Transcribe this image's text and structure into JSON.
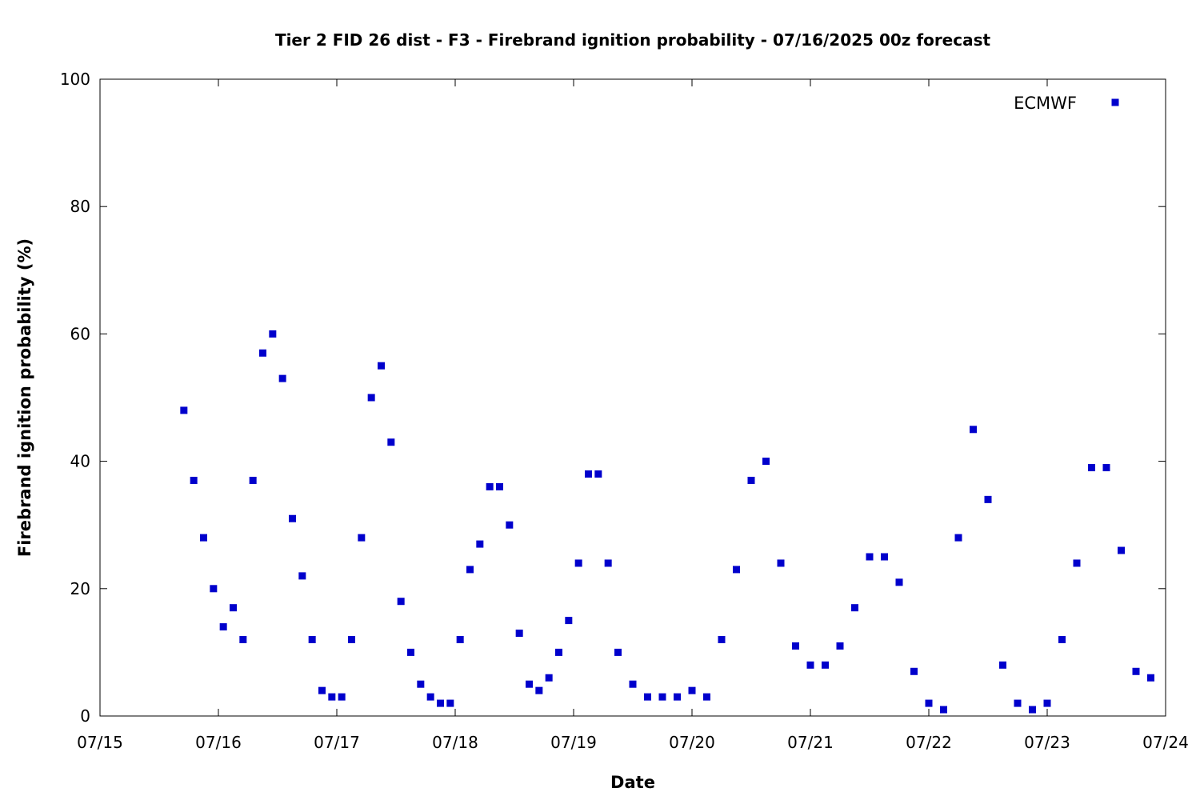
{
  "chart_data": {
    "type": "scatter",
    "title": "Tier 2 FID 26 dist - F3 - Firebrand ignition probability - 07/16/2025 00z forecast",
    "xlabel": "Date",
    "ylabel": "Firebrand ignition probability (%)",
    "xlim": [
      "07/15",
      "07/24"
    ],
    "ylim": [
      0,
      100
    ],
    "x_tick_labels": [
      "07/15",
      "07/16",
      "07/17",
      "07/18",
      "07/19",
      "07/20",
      "07/21",
      "07/22",
      "07/23",
      "07/24"
    ],
    "y_ticks": [
      0,
      20,
      40,
      60,
      80,
      100
    ],
    "grid": false,
    "legend_position": "top-right",
    "series": [
      {
        "name": "ECMWF",
        "marker": "square",
        "color": "#0000cc",
        "x": [
          "07/15 17:00",
          "07/15 19:00",
          "07/15 21:00",
          "07/15 23:00",
          "07/16 01:00",
          "07/16 03:00",
          "07/16 05:00",
          "07/16 07:00",
          "07/16 09:00",
          "07/16 11:00",
          "07/16 13:00",
          "07/16 15:00",
          "07/16 17:00",
          "07/16 19:00",
          "07/16 21:00",
          "07/16 23:00",
          "07/17 01:00",
          "07/17 03:00",
          "07/17 05:00",
          "07/17 07:00",
          "07/17 09:00",
          "07/17 11:00",
          "07/17 13:00",
          "07/17 15:00",
          "07/17 17:00",
          "07/17 19:00",
          "07/17 21:00",
          "07/17 23:00",
          "07/18 01:00",
          "07/18 03:00",
          "07/18 05:00",
          "07/18 07:00",
          "07/18 09:00",
          "07/18 11:00",
          "07/18 13:00",
          "07/18 15:00",
          "07/18 17:00",
          "07/18 19:00",
          "07/18 21:00",
          "07/18 23:00",
          "07/19 01:00",
          "07/19 03:00",
          "07/19 05:00",
          "07/19 07:00",
          "07/19 09:00",
          "07/19 12:00",
          "07/19 15:00",
          "07/19 18:00",
          "07/19 21:00",
          "07/20 00:00",
          "07/20 03:00",
          "07/20 06:00",
          "07/20 09:00",
          "07/20 12:00",
          "07/20 15:00",
          "07/20 18:00",
          "07/20 21:00",
          "07/21 00:00",
          "07/21 03:00",
          "07/21 06:00",
          "07/21 09:00",
          "07/21 12:00",
          "07/21 15:00",
          "07/21 18:00",
          "07/21 21:00",
          "07/22 00:00",
          "07/22 03:00",
          "07/22 06:00",
          "07/22 09:00",
          "07/22 12:00",
          "07/22 15:00",
          "07/22 18:00",
          "07/22 21:00",
          "07/23 00:00",
          "07/23 03:00",
          "07/23 06:00",
          "07/23 09:00",
          "07/23 12:00",
          "07/23 15:00",
          "07/23 18:00",
          "07/23 21:00"
        ],
        "y": [
          48,
          37,
          28,
          20,
          14,
          17,
          12,
          37,
          57,
          60,
          53,
          31,
          22,
          12,
          4,
          3,
          3,
          12,
          28,
          50,
          55,
          43,
          18,
          10,
          5,
          3,
          2,
          2,
          12,
          23,
          27,
          36,
          36,
          30,
          13,
          5,
          4,
          6,
          10,
          15,
          24,
          38,
          38,
          24,
          10,
          5,
          3,
          3,
          3,
          4,
          3,
          12,
          23,
          37,
          40,
          24,
          11,
          8,
          8,
          11,
          17,
          25,
          25,
          21,
          7,
          2,
          1,
          28,
          45,
          34,
          8,
          2,
          1,
          2,
          12,
          24,
          39,
          39,
          26,
          7,
          6
        ],
        "y_labelled": true
      }
    ]
  }
}
